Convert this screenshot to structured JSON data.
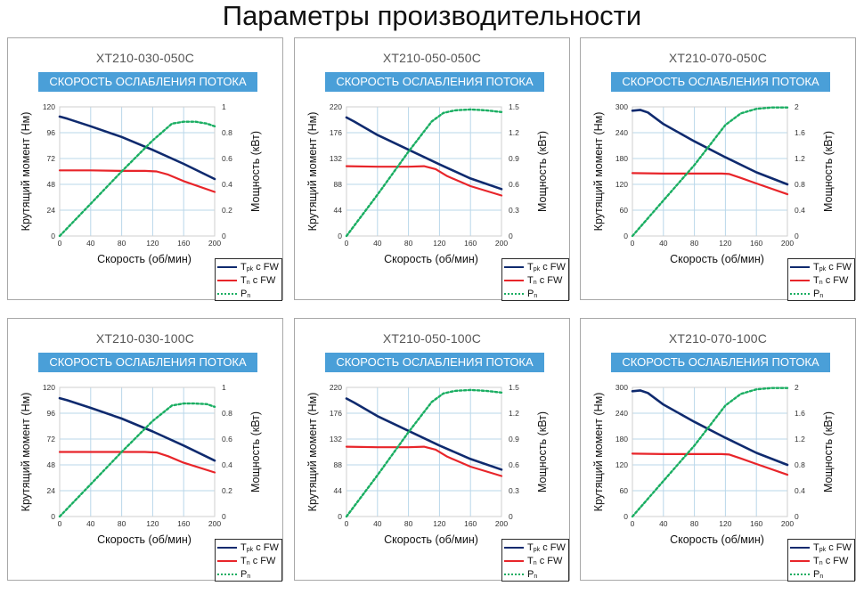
{
  "page": {
    "title": "Параметры производительности"
  },
  "colors": {
    "tpk": "#0f2a6e",
    "tn": "#e8252a",
    "pn": "#1aae62",
    "grid": "#b9d7ea",
    "banner": "#4a9fd8"
  },
  "common": {
    "banner": "СКОРОСТЬ ОСЛАБЛЕНИЯ ПОТОКА",
    "xlabel": "Скорость (об/мин)",
    "ylabel": "Крутящий момент (Нм)",
    "y2label": "Мощность (кВт)",
    "legend": [
      {
        "id": "tpk",
        "sym": "T",
        "sub": "pk",
        "rest": " с FW"
      },
      {
        "id": "tn",
        "sym": "T",
        "sub": "n",
        "rest": " с FW"
      },
      {
        "id": "pn",
        "sym": "P",
        "sub": "n",
        "rest": ""
      }
    ]
  },
  "chart_data": [
    {
      "type": "line",
      "title": "XT210-030-050C",
      "xlabel": "Скорость (об/мин)",
      "ylabel": "Крутящий момент (Нм)",
      "y2label": "Мощность (кВт)",
      "xlim": [
        0,
        200
      ],
      "ylim": [
        0,
        120
      ],
      "y2lim": [
        0,
        1
      ],
      "x_ticks": [
        "0",
        "40",
        "80",
        "120",
        "160",
        "200"
      ],
      "y_ticks": [
        "0",
        "24",
        "48",
        "72",
        "96",
        "120"
      ],
      "y2_ticks": [
        "0",
        "0.2",
        "0.4",
        "0.6",
        "0.8",
        "1"
      ],
      "series": [
        {
          "name": "Tpk с FW",
          "axis": "y",
          "x": [
            0,
            10,
            40,
            80,
            120,
            160,
            200
          ],
          "values": [
            111,
            109,
            102,
            92,
            80,
            67,
            53
          ]
        },
        {
          "name": "Tn с FW",
          "axis": "y",
          "x": [
            0,
            40,
            80,
            110,
            125,
            140,
            160,
            200
          ],
          "values": [
            61,
            61,
            60.5,
            60.5,
            60,
            57,
            51,
            41
          ]
        },
        {
          "name": "Pn",
          "axis": "y2",
          "x": [
            0,
            40,
            80,
            120,
            145,
            160,
            175,
            190,
            200
          ],
          "values": [
            0,
            0.25,
            0.5,
            0.74,
            0.87,
            0.885,
            0.885,
            0.87,
            0.85
          ]
        }
      ]
    },
    {
      "type": "line",
      "title": "XT210-050-050C",
      "xlabel": "Скорость (об/мин)",
      "ylabel": "Крутящий момент (Нм)",
      "y2label": "Мощность (кВт)",
      "xlim": [
        0,
        200
      ],
      "ylim": [
        0,
        220
      ],
      "y2lim": [
        0,
        1.5
      ],
      "x_ticks": [
        "0",
        "40",
        "80",
        "120",
        "160",
        "200"
      ],
      "y_ticks": [
        "0",
        "44",
        "88",
        "132",
        "176",
        "220"
      ],
      "y2_ticks": [
        "0",
        "0.3",
        "0.6",
        "0.9",
        "1.2",
        "1.5"
      ],
      "series": [
        {
          "name": "Tpk с FW",
          "axis": "y",
          "x": [
            0,
            10,
            40,
            80,
            120,
            160,
            200
          ],
          "values": [
            202,
            195,
            172,
            147,
            122,
            98,
            80
          ]
        },
        {
          "name": "Tn с FW",
          "axis": "y",
          "x": [
            0,
            40,
            80,
            100,
            115,
            130,
            160,
            200
          ],
          "values": [
            119,
            118,
            118,
            119,
            114,
            102,
            85,
            69
          ]
        },
        {
          "name": "Pn",
          "axis": "y2",
          "x": [
            0,
            40,
            80,
            110,
            125,
            140,
            160,
            180,
            200
          ],
          "values": [
            0,
            0.48,
            0.98,
            1.33,
            1.43,
            1.46,
            1.47,
            1.46,
            1.44
          ]
        }
      ]
    },
    {
      "type": "line",
      "title": "XT210-070-050C",
      "xlabel": "Скорость (об/мин)",
      "ylabel": "Крутящий момент (Нм)",
      "y2label": "Мощность (кВт)",
      "xlim": [
        0,
        200
      ],
      "ylim": [
        0,
        300
      ],
      "y2lim": [
        0,
        2
      ],
      "x_ticks": [
        "0",
        "40",
        "80",
        "120",
        "160",
        "200"
      ],
      "y_ticks": [
        "0",
        "60",
        "120",
        "180",
        "240",
        "300"
      ],
      "y2_ticks": [
        "0",
        "0.4",
        "0.8",
        "1.2",
        "1.6",
        "2"
      ],
      "series": [
        {
          "name": "Tpk с FW",
          "axis": "y",
          "x": [
            0,
            10,
            20,
            40,
            80,
            120,
            160,
            200
          ],
          "values": [
            291,
            293,
            287,
            260,
            220,
            183,
            148,
            120
          ]
        },
        {
          "name": "Tn с FW",
          "axis": "y",
          "x": [
            0,
            40,
            80,
            115,
            125,
            140,
            160,
            200
          ],
          "values": [
            146,
            145,
            145,
            145,
            144,
            135,
            122,
            97
          ]
        },
        {
          "name": "Pn",
          "axis": "y2",
          "x": [
            0,
            40,
            80,
            120,
            140,
            160,
            180,
            200
          ],
          "values": [
            0,
            0.55,
            1.1,
            1.72,
            1.9,
            1.97,
            1.99,
            1.99
          ]
        }
      ]
    },
    {
      "type": "line",
      "title": "XT210-030-100C",
      "xlabel": "Скорость (об/мин)",
      "ylabel": "Крутящий момент (Нм)",
      "y2label": "Мощность (кВт)",
      "xlim": [
        0,
        200
      ],
      "ylim": [
        0,
        120
      ],
      "y2lim": [
        0,
        1
      ],
      "x_ticks": [
        "0",
        "40",
        "80",
        "120",
        "160",
        "200"
      ],
      "y_ticks": [
        "0",
        "24",
        "48",
        "72",
        "96",
        "120"
      ],
      "y2_ticks": [
        "0",
        "0.2",
        "0.4",
        "0.6",
        "0.8",
        "1"
      ],
      "series": [
        {
          "name": "Tpk с FW",
          "axis": "y",
          "x": [
            0,
            10,
            40,
            80,
            120,
            160,
            200
          ],
          "values": [
            110,
            108,
            101,
            91,
            79,
            66,
            52
          ]
        },
        {
          "name": "Tn с FW",
          "axis": "y",
          "x": [
            0,
            40,
            80,
            110,
            125,
            140,
            160,
            200
          ],
          "values": [
            60,
            60,
            60,
            60,
            59.5,
            56,
            50,
            41
          ]
        },
        {
          "name": "Pn",
          "axis": "y2",
          "x": [
            0,
            40,
            80,
            120,
            145,
            160,
            175,
            190,
            200
          ],
          "values": [
            0,
            0.25,
            0.5,
            0.74,
            0.86,
            0.875,
            0.875,
            0.87,
            0.85
          ]
        }
      ]
    },
    {
      "type": "line",
      "title": "XT210-050-100C",
      "xlabel": "Скорость (об/мин)",
      "ylabel": "Крутящий момент (Нм)",
      "y2label": "Мощность (кВт)",
      "xlim": [
        0,
        200
      ],
      "ylim": [
        0,
        220
      ],
      "y2lim": [
        0,
        1.5
      ],
      "x_ticks": [
        "0",
        "40",
        "80",
        "120",
        "160",
        "200"
      ],
      "y_ticks": [
        "0",
        "44",
        "88",
        "132",
        "176",
        "220"
      ],
      "y2_ticks": [
        "0",
        "0.3",
        "0.6",
        "0.9",
        "1.2",
        "1.5"
      ],
      "series": [
        {
          "name": "Tpk с FW",
          "axis": "y",
          "x": [
            0,
            10,
            40,
            80,
            120,
            160,
            200
          ],
          "values": [
            201,
            194,
            171,
            146,
            121,
            98,
            80
          ]
        },
        {
          "name": "Tn с FW",
          "axis": "y",
          "x": [
            0,
            40,
            80,
            100,
            115,
            130,
            160,
            200
          ],
          "values": [
            119,
            118,
            118,
            119,
            114,
            102,
            85,
            69
          ]
        },
        {
          "name": "Pn",
          "axis": "y2",
          "x": [
            0,
            40,
            80,
            110,
            125,
            140,
            160,
            180,
            200
          ],
          "values": [
            0,
            0.48,
            0.98,
            1.33,
            1.43,
            1.46,
            1.47,
            1.46,
            1.44
          ]
        }
      ]
    },
    {
      "type": "line",
      "title": "XT210-070-100C",
      "xlabel": "Скорость (об/мин)",
      "ylabel": "Крутящий момент (Нм)",
      "y2label": "Мощность (кВт)",
      "xlim": [
        0,
        200
      ],
      "ylim": [
        0,
        300
      ],
      "y2lim": [
        0,
        2
      ],
      "x_ticks": [
        "0",
        "40",
        "80",
        "120",
        "160",
        "200"
      ],
      "y_ticks": [
        "0",
        "60",
        "120",
        "180",
        "240",
        "300"
      ],
      "y2_ticks": [
        "0",
        "0.4",
        "0.8",
        "1.2",
        "1.6",
        "2"
      ],
      "series": [
        {
          "name": "Tpk с FW",
          "axis": "y",
          "x": [
            0,
            10,
            20,
            40,
            80,
            120,
            160,
            200
          ],
          "values": [
            291,
            293,
            287,
            260,
            220,
            183,
            148,
            120
          ]
        },
        {
          "name": "Tn с FW",
          "axis": "y",
          "x": [
            0,
            40,
            80,
            115,
            125,
            140,
            160,
            200
          ],
          "values": [
            146,
            145,
            145,
            145,
            144,
            135,
            122,
            97
          ]
        },
        {
          "name": "Pn",
          "axis": "y2",
          "x": [
            0,
            40,
            80,
            120,
            140,
            160,
            180,
            200
          ],
          "values": [
            0,
            0.55,
            1.1,
            1.72,
            1.9,
            1.97,
            1.99,
            1.99
          ]
        }
      ]
    }
  ]
}
